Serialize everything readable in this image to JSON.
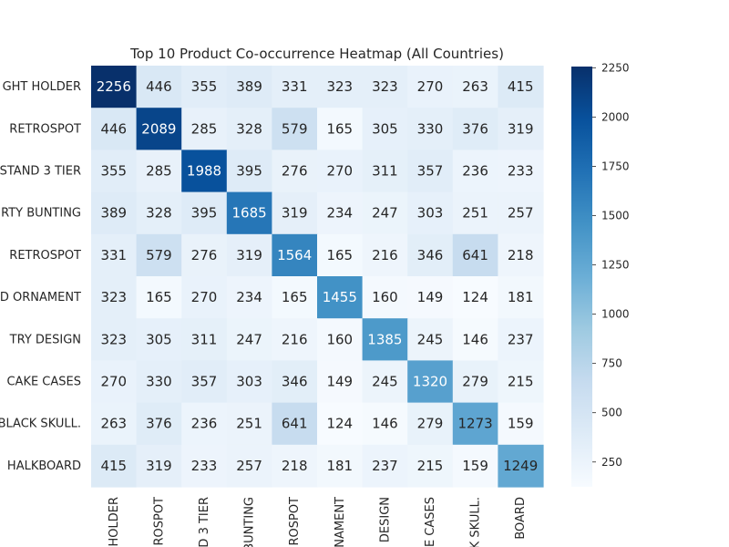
{
  "chart_data": {
    "type": "heatmap",
    "title": "Top 10 Product Co-occurrence Heatmap (All Countries)",
    "row_labels": [
      "GHT HOLDER",
      "RETROSPOT",
      "STAND 3 TIER",
      "RTY BUNTING",
      "RETROSPOT",
      "D ORNAMENT",
      "TRY DESIGN",
      "CAKE CASES",
      "BLACK SKULL.",
      "HALKBOARD"
    ],
    "col_labels": [
      "HOLDER",
      "ROSPOT",
      "D 3 TIER",
      "BUNTING",
      "ROSPOT",
      "NAMENT",
      "DESIGN",
      "E CASES",
      "K SKULL.",
      "BOARD"
    ],
    "values": [
      [
        2256,
        446,
        355,
        389,
        331,
        323,
        323,
        270,
        263,
        415
      ],
      [
        446,
        2089,
        285,
        328,
        579,
        165,
        305,
        330,
        376,
        319
      ],
      [
        355,
        285,
        1988,
        395,
        276,
        270,
        311,
        357,
        236,
        233
      ],
      [
        389,
        328,
        395,
        1685,
        319,
        234,
        247,
        303,
        251,
        257
      ],
      [
        331,
        579,
        276,
        319,
        1564,
        165,
        216,
        346,
        641,
        218
      ],
      [
        323,
        165,
        270,
        234,
        165,
        1455,
        160,
        149,
        124,
        181
      ],
      [
        323,
        305,
        311,
        247,
        216,
        160,
        1385,
        245,
        146,
        237
      ],
      [
        270,
        330,
        357,
        303,
        346,
        149,
        245,
        1320,
        279,
        215
      ],
      [
        263,
        376,
        236,
        251,
        641,
        124,
        146,
        279,
        1273,
        159
      ],
      [
        415,
        319,
        233,
        257,
        218,
        181,
        237,
        215,
        159,
        1249
      ]
    ],
    "colorbar": {
      "min": 124,
      "max": 2256,
      "ticks": [
        250,
        500,
        750,
        1000,
        1250,
        1500,
        1750,
        2000,
        2250
      ]
    },
    "colormap": "Blues",
    "colors": [
      "#f7fbff",
      "#deebf7",
      "#c6dbef",
      "#9ecae1",
      "#6baed6",
      "#4292c6",
      "#2171b5",
      "#08519c",
      "#08306b"
    ]
  }
}
